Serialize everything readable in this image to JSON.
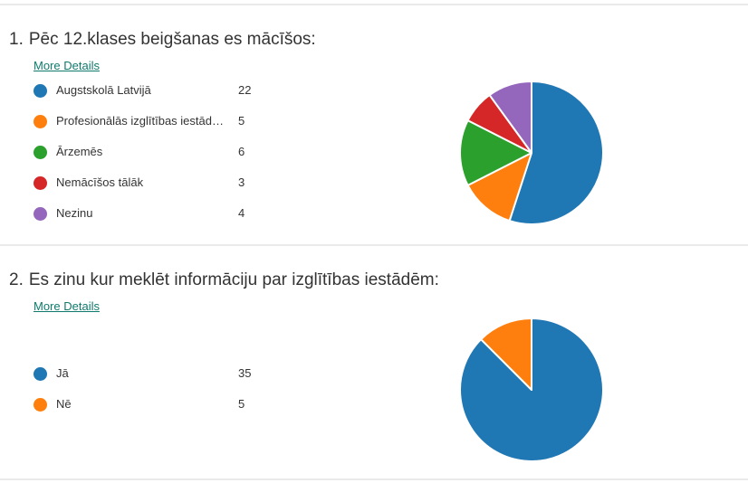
{
  "colors": {
    "blue": "#1f77b4",
    "orange": "#ff7f0e",
    "green": "#2ca02c",
    "red": "#d62728",
    "purple": "#9467bd",
    "link": "#0f7a6c"
  },
  "questions": [
    {
      "number": "1.",
      "title": "Pēc 12.klases beigšanas es mācīšos:",
      "more_details": "More Details",
      "options": [
        {
          "label": "Augstskolā Latvijā",
          "value": "22",
          "color": "#1f77b4"
        },
        {
          "label": "Profesionālās izglītības iestādē...",
          "value": "5",
          "color": "#ff7f0e"
        },
        {
          "label": "Ārzemēs",
          "value": "6",
          "color": "#2ca02c"
        },
        {
          "label": "Nemācīšos tālāk",
          "value": "3",
          "color": "#d62728"
        },
        {
          "label": "Nezinu",
          "value": "4",
          "color": "#9467bd"
        }
      ]
    },
    {
      "number": "2.",
      "title": "Es zinu kur meklēt informāciju par izglītības iestādēm:",
      "more_details": "More Details",
      "options": [
        {
          "label": "Jā",
          "value": "35",
          "color": "#1f77b4"
        },
        {
          "label": "Nē",
          "value": "5",
          "color": "#ff7f0e"
        }
      ]
    }
  ],
  "chart_data": [
    {
      "type": "pie",
      "categories": [
        "Augstskolā Latvijā",
        "Profesionālās izglītības iestādē...",
        "Ārzemēs",
        "Nemācīšos tālāk",
        "Nezinu"
      ],
      "values": [
        22,
        5,
        6,
        3,
        4
      ],
      "colors": [
        "#1f77b4",
        "#ff7f0e",
        "#2ca02c",
        "#d62728",
        "#9467bd"
      ],
      "title": "Pēc 12.klases beigšanas es mācīšos:"
    },
    {
      "type": "pie",
      "categories": [
        "Jā",
        "Nē"
      ],
      "values": [
        35,
        5
      ],
      "colors": [
        "#1f77b4",
        "#ff7f0e"
      ],
      "title": "Es zinu kur meklēt informāciju par izglītības iestādēm:"
    }
  ]
}
